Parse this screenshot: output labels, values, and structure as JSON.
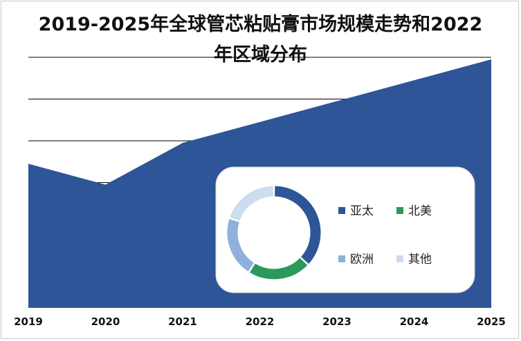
{
  "title": {
    "line1": "2019-2025年全球管芯粘贴膏市场规模走势和2022",
    "line2": "年区域分布"
  },
  "chart_data": [
    {
      "type": "area",
      "x": [
        "2019",
        "2020",
        "2021",
        "2022",
        "2023",
        "2024",
        "2025"
      ],
      "series": [
        {
          "values": [
            3.45,
            2.95,
            3.95,
            4.45,
            4.95,
            5.45,
            5.95
          ],
          "color": "#2e5597"
        }
      ],
      "ylim": [
        0,
        6
      ],
      "grid": true,
      "xlabel": "",
      "ylabel": ""
    },
    {
      "type": "pie",
      "variant": "donut",
      "categories": [
        "亚太",
        "北美",
        "欧洲",
        "其他"
      ],
      "values": [
        37,
        22,
        21,
        20
      ],
      "colors": [
        "#2e5597",
        "#2a9a5b",
        "#8fb0dc",
        "#cddcf0"
      ],
      "legend": "right"
    }
  ]
}
